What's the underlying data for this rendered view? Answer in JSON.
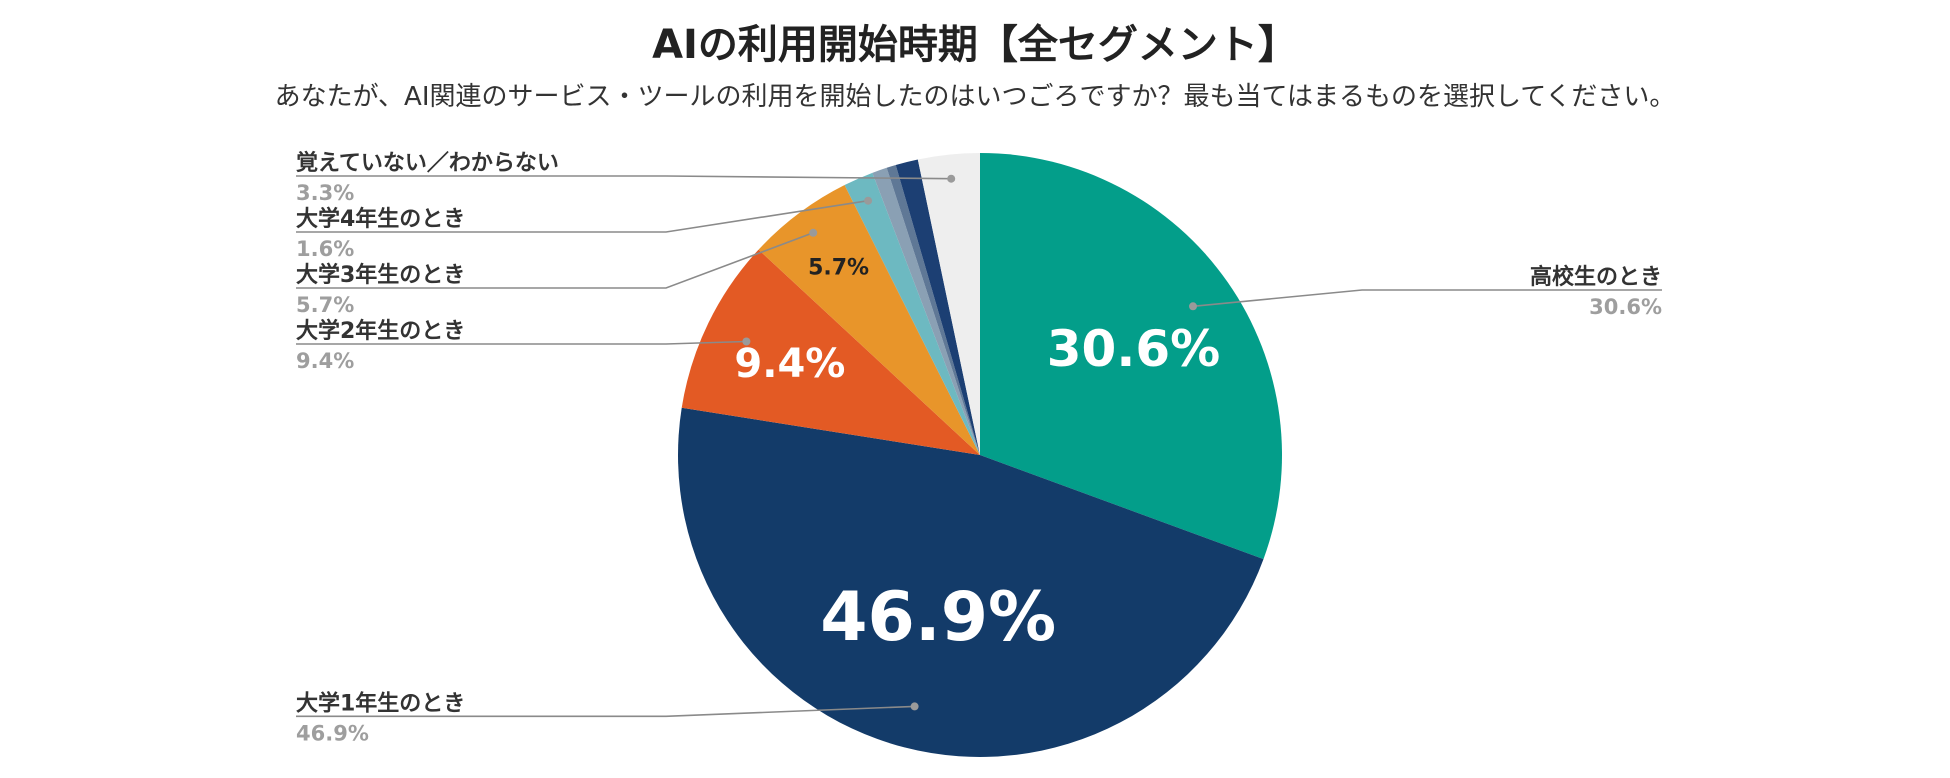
{
  "chart_data": {
    "type": "pie",
    "title": "AIの利用開始時期【全セグメント】",
    "subtitle": "あなたが、AI関連のサービス・ツールの利用を開始したのはいつごろですか？最も当てはまるものを選択してください。",
    "slices": [
      {
        "label": "高校生のとき",
        "value": 30.6,
        "display": "30.6%",
        "color": "#039e8a",
        "inner_label": "30.6%",
        "inner_label_color": "#ffffff",
        "inner_label_size": "large"
      },
      {
        "label": "大学1年生のとき",
        "value": 46.9,
        "display": "46.9%",
        "color": "#133b69",
        "inner_label": "46.9%",
        "inner_label_color": "#ffffff",
        "inner_label_size": "xlarge"
      },
      {
        "label": "大学2年生のとき",
        "value": 9.4,
        "display": "9.4%",
        "color": "#e35a24",
        "inner_label": "9.4%",
        "inner_label_color": "#ffffff",
        "inner_label_size": "medium"
      },
      {
        "label": "大学3年生のとき",
        "value": 5.7,
        "display": "5.7%",
        "color": "#e8952a",
        "inner_label": "5.7%",
        "inner_label_color": "#222222",
        "inner_label_size": "small"
      },
      {
        "label": "大学4年生のとき",
        "value": 1.6,
        "display": "1.6%",
        "color": "#6db9c1",
        "inner_label": "",
        "inner_label_color": "",
        "inner_label_size": ""
      },
      {
        "label": "",
        "value": 0.8,
        "display": "",
        "color": "#8aa0b4",
        "inner_label": "",
        "inner_label_color": "",
        "inner_label_size": ""
      },
      {
        "label": "",
        "value": 0.5,
        "display": "",
        "color": "#5f7896",
        "inner_label": "",
        "inner_label_color": "",
        "inner_label_size": ""
      },
      {
        "label": "",
        "value": 1.2,
        "display": "",
        "color": "#1c3f73",
        "inner_label": "",
        "inner_label_color": "",
        "inner_label_size": ""
      },
      {
        "label": "覚えていない／わからない",
        "value": 3.3,
        "display": "3.3%",
        "color": "#eeeeee",
        "inner_label": "",
        "inner_label_color": "",
        "inner_label_size": ""
      }
    ],
    "start_angle": "12 o'clock",
    "direction": "clockwise",
    "legend": "callout labels with leader lines"
  }
}
